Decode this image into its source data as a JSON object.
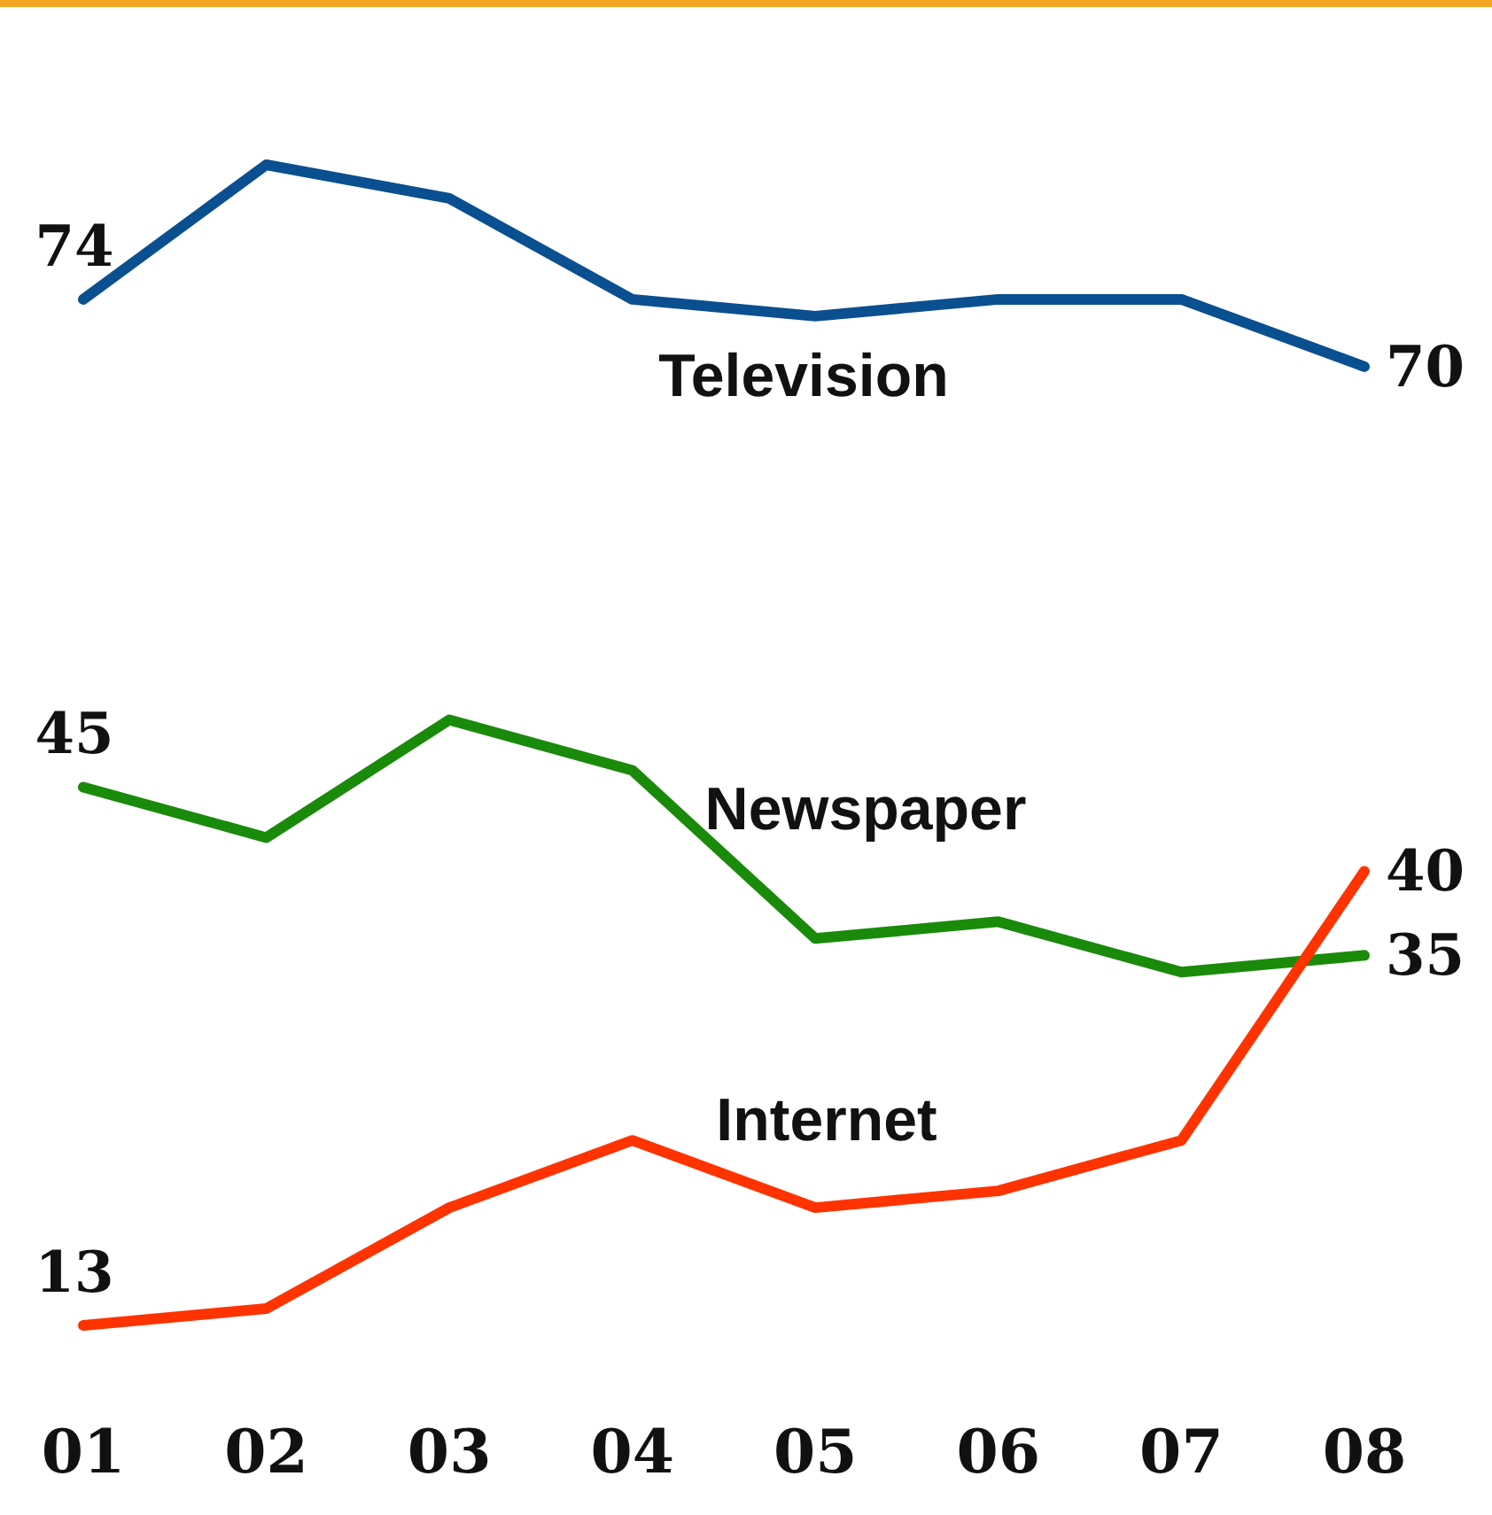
{
  "chart_data": {
    "type": "line",
    "categories": [
      "01",
      "02",
      "03",
      "04",
      "05",
      "06",
      "07",
      "08"
    ],
    "series": [
      {
        "name": "Television",
        "color": "#0a4f8f",
        "values": [
          74,
          82,
          80,
          74,
          73,
          74,
          74,
          70
        ],
        "value_labels": [
          "74",
          null,
          null,
          null,
          null,
          null,
          null,
          "70"
        ]
      },
      {
        "name": "Newspaper",
        "color": "#1a8a0a",
        "values": [
          45,
          42,
          49,
          46,
          36,
          37,
          34,
          35
        ],
        "value_labels": [
          "45",
          null,
          null,
          null,
          null,
          null,
          null,
          "35"
        ]
      },
      {
        "name": "Internet",
        "color": "#ff3300",
        "values": [
          13,
          14,
          20,
          24,
          20,
          21,
          24,
          40
        ],
        "value_labels": [
          "13",
          null,
          null,
          null,
          null,
          null,
          null,
          "40"
        ]
      }
    ],
    "grid": false,
    "legend": false,
    "marker": "none",
    "line_style": "solid",
    "tick_labels": "x"
  }
}
